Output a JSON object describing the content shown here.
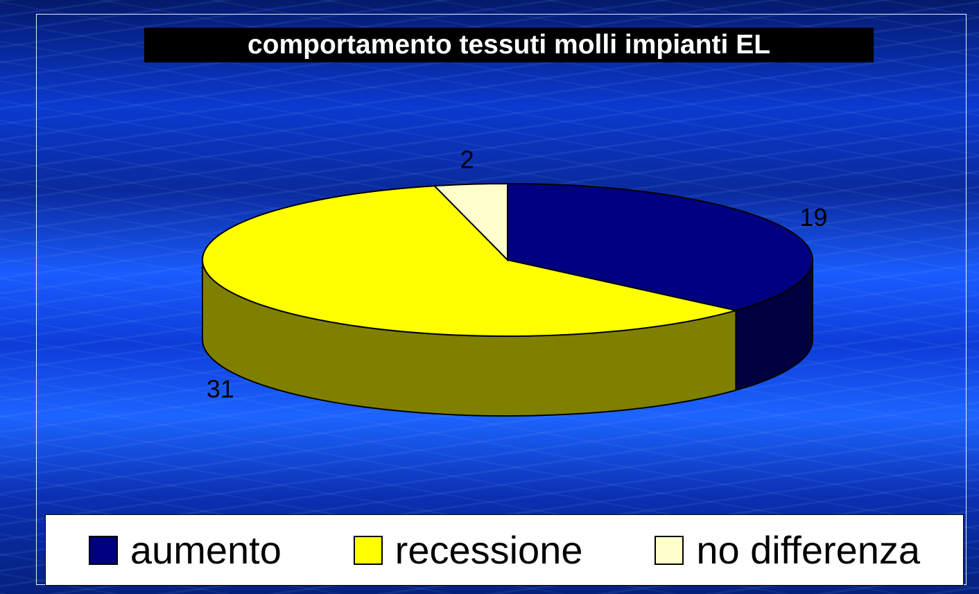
{
  "chart_data": {
    "type": "pie",
    "title": "comportamento tessuti molli impianti EL",
    "categories": [
      "aumento",
      "recessione",
      "no differenza"
    ],
    "values": [
      19,
      31,
      2
    ],
    "colors": [
      "#000080",
      "#ffff00",
      "#ffffcc"
    ],
    "legend": "bottom"
  }
}
